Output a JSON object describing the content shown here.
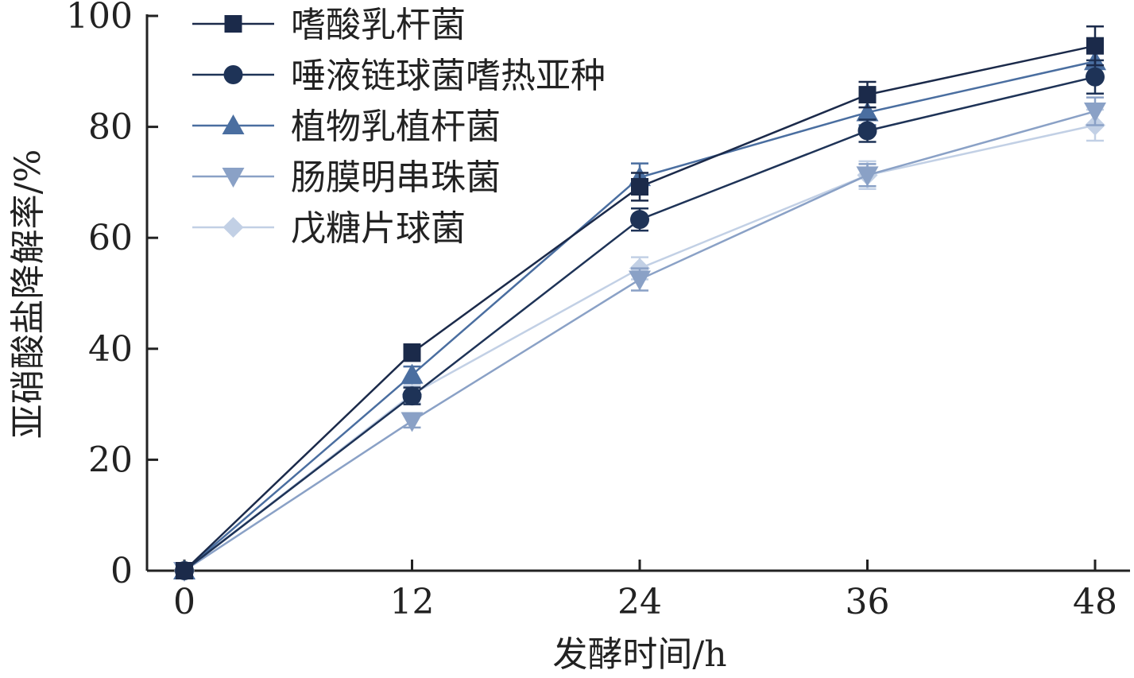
{
  "chart_data": {
    "type": "line",
    "xlabel": "发酵时间/h",
    "ylabel": "亚硝酸盐降解率/%",
    "xlim": [
      0,
      48
    ],
    "ylim": [
      0,
      100
    ],
    "xticks": [
      0,
      12,
      24,
      36,
      48
    ],
    "yticks": [
      0,
      20,
      40,
      60,
      80,
      100
    ],
    "grid": false,
    "legend_position": "top-left",
    "x": [
      0,
      12,
      24,
      36,
      48
    ],
    "series": [
      {
        "name": "嗜酸乳杆菌",
        "marker": "square",
        "color": "#1b2a4a",
        "values": [
          0,
          39.3,
          69.2,
          85.8,
          94.6
        ],
        "errors": [
          0.5,
          1.5,
          2.5,
          2.3,
          3.5
        ]
      },
      {
        "name": "唾液链球菌嗜热亚种",
        "marker": "circle",
        "color": "#1e3357",
        "values": [
          0,
          31.5,
          63.3,
          79.3,
          89.0
        ],
        "errors": [
          0.5,
          1.5,
          2.0,
          2.0,
          3.0
        ]
      },
      {
        "name": "植物乳植杆菌",
        "marker": "triangle-up",
        "color": "#4a6ea0",
        "values": [
          0,
          35.3,
          70.9,
          82.6,
          91.8
        ],
        "errors": [
          0.5,
          1.5,
          2.5,
          2.3,
          3.0
        ]
      },
      {
        "name": "肠膜明串珠菌",
        "marker": "triangle-down",
        "color": "#8aa1c6",
        "values": [
          0,
          27.0,
          52.5,
          71.3,
          82.8
        ],
        "errors": [
          0.5,
          1.2,
          2.0,
          2.0,
          2.5
        ]
      },
      {
        "name": "戊糖片球菌",
        "marker": "diamond",
        "color": "#c2d0e5",
        "values": [
          0,
          31.8,
          54.5,
          71.3,
          80.3
        ],
        "errors": [
          0.5,
          1.5,
          2.0,
          2.5,
          2.8
        ]
      }
    ]
  }
}
